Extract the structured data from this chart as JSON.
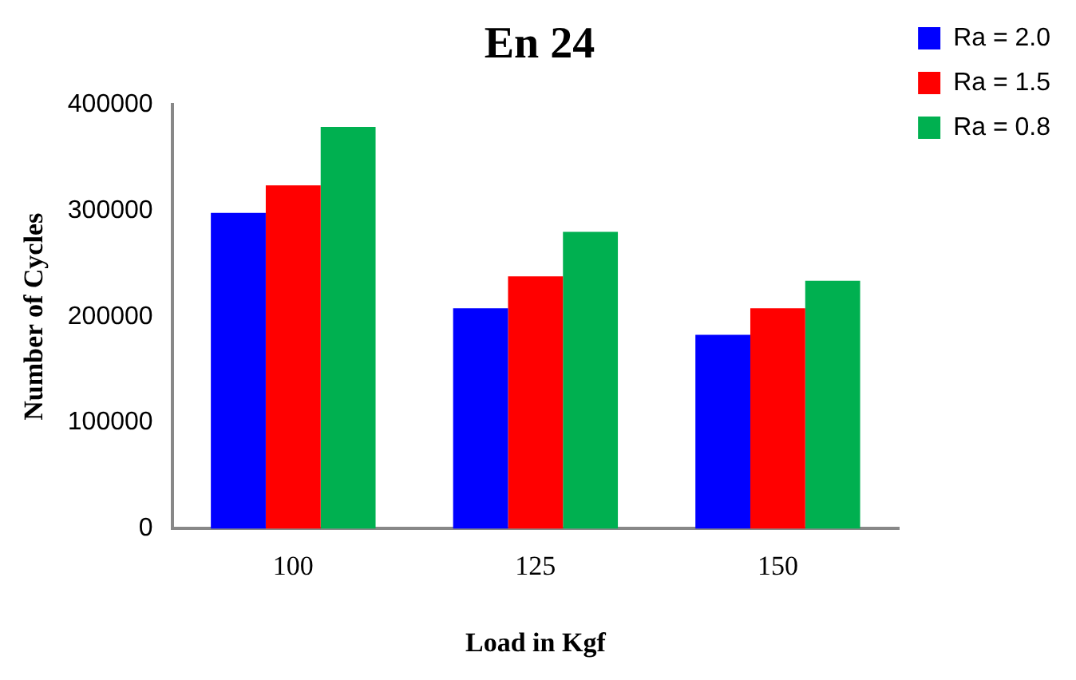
{
  "chart_data": {
    "type": "bar",
    "title": "En 24",
    "xlabel": "Load in Kgf",
    "ylabel": "Number of Cycles",
    "categories": [
      "100",
      "125",
      "150"
    ],
    "series": [
      {
        "name": "Ra = 2.0",
        "color": "#0000ff",
        "values": [
          298000,
          208000,
          183000
        ]
      },
      {
        "name": "Ra = 1.5",
        "color": "#ff0000",
        "values": [
          324000,
          238000,
          208000
        ]
      },
      {
        "name": "Ra = 0.8",
        "color": "#00b050",
        "values": [
          379000,
          280000,
          234000
        ]
      }
    ],
    "ylim": [
      0,
      400000
    ],
    "yticks": [
      0,
      100000,
      200000,
      300000,
      400000
    ],
    "grid": false,
    "legend": "top right"
  }
}
